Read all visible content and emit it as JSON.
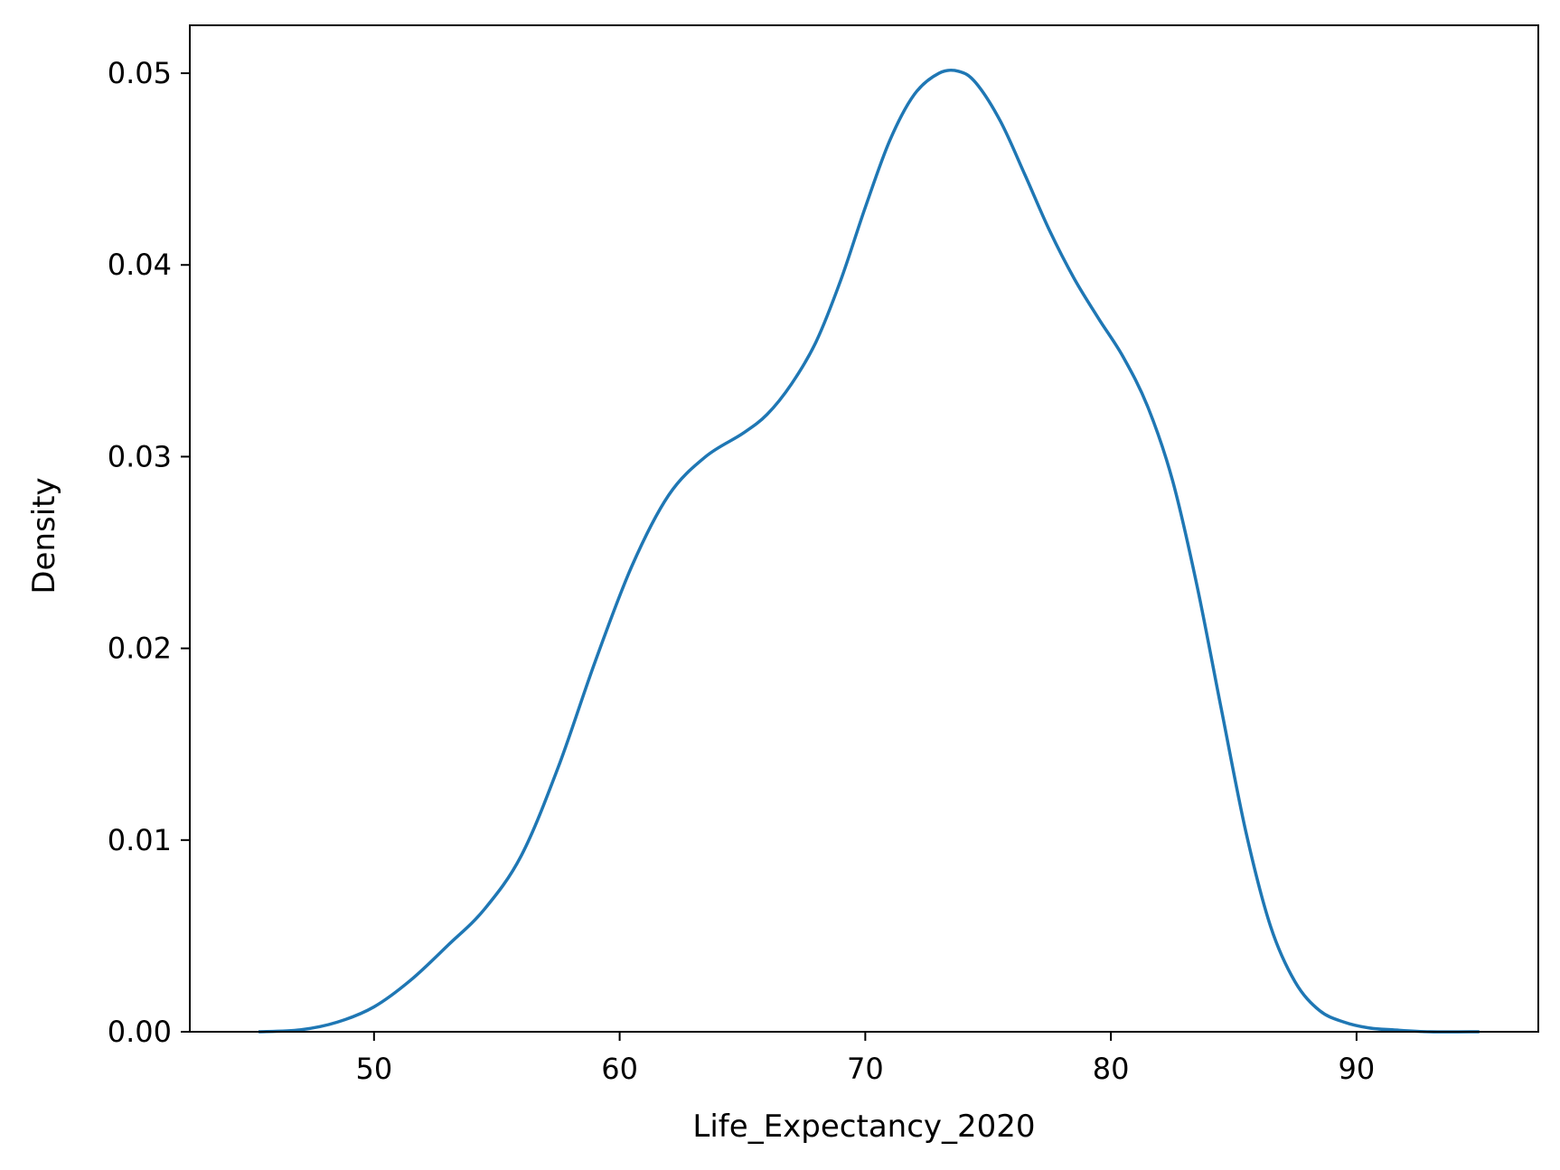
{
  "chart_data": {
    "type": "line",
    "title": "",
    "xlabel": "Life_Expectancy_2020",
    "ylabel": "Density",
    "xlim": [
      42.5,
      97.4
    ],
    "ylim": [
      0.0,
      0.0525
    ],
    "xticks": [
      50,
      60,
      70,
      80,
      90
    ],
    "xtick_labels": [
      "50",
      "60",
      "70",
      "80",
      "90"
    ],
    "yticks": [
      0.0,
      0.01,
      0.02,
      0.03,
      0.04,
      0.05
    ],
    "ytick_labels": [
      "0.00",
      "0.01",
      "0.02",
      "0.03",
      "0.04",
      "0.05"
    ],
    "grid": false,
    "legend": "none",
    "series": [
      {
        "color": "#1f77b4",
        "x": [
          45.3,
          47.0,
          48.5,
          50.0,
          51.5,
          53.0,
          54.5,
          56.0,
          57.5,
          59.0,
          60.5,
          62.0,
          63.5,
          65.0,
          66.0,
          67.0,
          68.0,
          69.0,
          70.0,
          71.0,
          72.0,
          73.0,
          73.8,
          74.5,
          75.5,
          76.5,
          77.5,
          78.5,
          79.5,
          80.5,
          81.5,
          82.5,
          83.5,
          84.5,
          85.5,
          86.5,
          87.5,
          88.5,
          89.5,
          90.5,
          91.5,
          93.0,
          95.0
        ],
        "y": [
          0.0,
          0.0001,
          0.0005,
          0.0013,
          0.0027,
          0.0045,
          0.0064,
          0.0092,
          0.0138,
          0.0193,
          0.0243,
          0.028,
          0.03,
          0.0312,
          0.0322,
          0.0338,
          0.036,
          0.0392,
          0.043,
          0.0465,
          0.0489,
          0.05,
          0.0501,
          0.0495,
          0.0475,
          0.0447,
          0.0418,
          0.0393,
          0.0372,
          0.0352,
          0.0326,
          0.0288,
          0.0233,
          0.0168,
          0.0104,
          0.0055,
          0.0026,
          0.0011,
          0.0005,
          0.0002,
          0.0001,
          0.0,
          0.0
        ]
      }
    ]
  }
}
